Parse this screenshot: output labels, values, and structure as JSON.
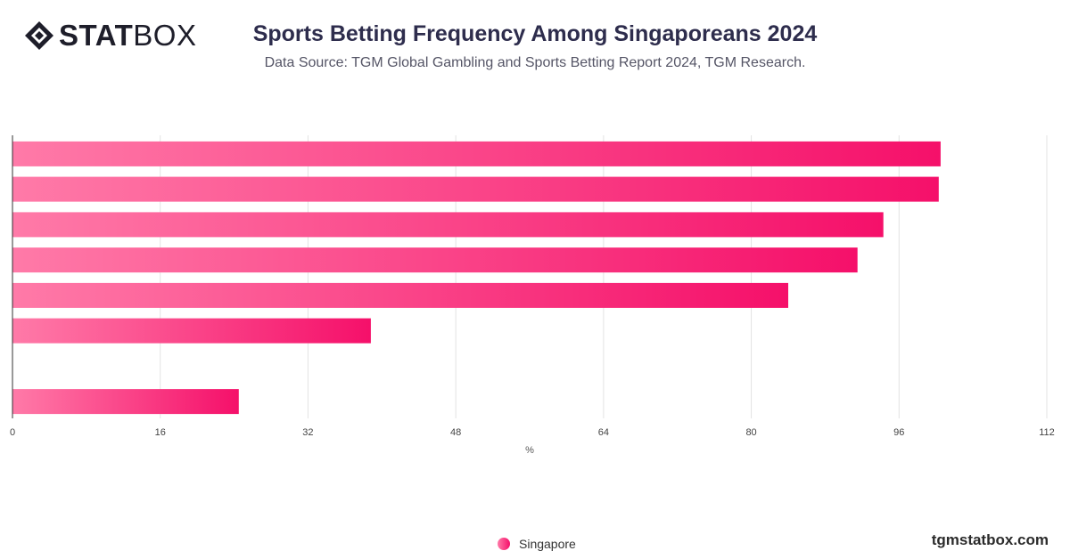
{
  "brand": {
    "logo_bold": "STAT",
    "logo_light": "BOX",
    "website": "tgmstatbox.com"
  },
  "colors": {
    "bar_start": "#ff7aa8",
    "bar_end": "#f5106a",
    "grid": "#e3e3e3",
    "axis": "#333333",
    "title": "#2e2d4d"
  },
  "chart_data": {
    "type": "bar",
    "orientation": "horizontal",
    "title": "Sports Betting Frequency Among Singaporeans 2024",
    "subtitle": "Data Source: TGM Global Gambling and Sports Betting Report 2024, TGM Research.",
    "xlabel": "%",
    "ylabel": "",
    "xlim": [
      0,
      112
    ],
    "xticks": [
      0,
      16,
      32,
      48,
      64,
      80,
      96,
      112
    ],
    "categories": [
      "",
      "",
      "",
      "",
      "",
      "",
      "",
      ""
    ],
    "series": [
      {
        "name": "Singapore",
        "values": [
          100.5,
          100.3,
          94.3,
          91.5,
          84,
          38.8,
          0,
          24.5
        ]
      }
    ],
    "grid": true,
    "legend": "bottom-center"
  }
}
